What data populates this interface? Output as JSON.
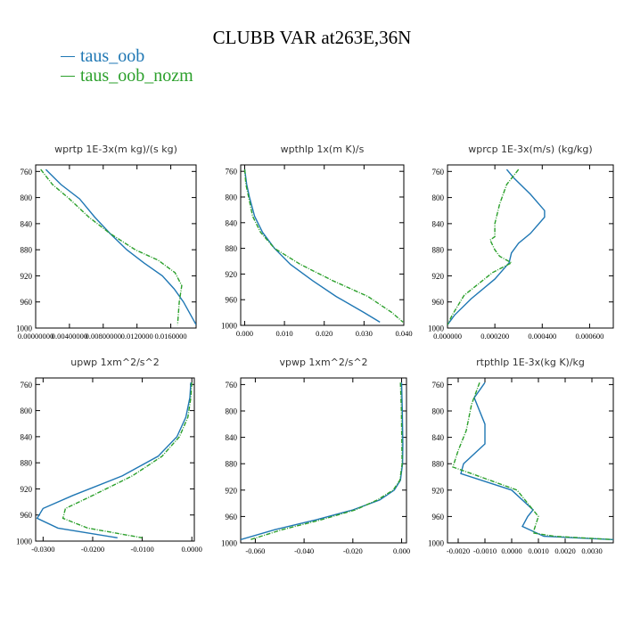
{
  "title": "CLUBB VAR at263E,36N",
  "legend": [
    {
      "label": "taus_oob",
      "color": "#1f77b4"
    },
    {
      "label": "taus_oob_nozm",
      "color": "#2ca02c"
    }
  ],
  "chart_data": [
    {
      "type": "line",
      "title": "wprtp  1E-3x(m kg)/(s kg)",
      "xlim": [
        0.0,
        0.019
      ],
      "xticks": [
        0.0,
        0.004,
        0.008,
        0.012,
        0.016
      ],
      "xtick_labels": [
        "0.00000000",
        "0.00400000",
        "0.00800000",
        "0.0120000",
        "0.0160000"
      ],
      "ylim": [
        1000,
        750
      ],
      "yticks": [
        760,
        800,
        840,
        880,
        920,
        960,
        1000
      ],
      "series": [
        {
          "name": "taus_oob",
          "x": [
            0.0012,
            0.003,
            0.0052,
            0.007,
            0.0088,
            0.0108,
            0.0128,
            0.015,
            0.0164,
            0.0175,
            0.019
          ],
          "y": [
            757,
            780,
            802,
            830,
            855,
            880,
            900,
            920,
            940,
            960,
            995
          ]
        },
        {
          "name": "taus_oob_nozm",
          "x": [
            0.0006,
            0.002,
            0.004,
            0.0063,
            0.0088,
            0.0118,
            0.0145,
            0.0165,
            0.0173,
            0.017,
            0.0168
          ],
          "y": [
            757,
            780,
            802,
            830,
            855,
            880,
            896,
            915,
            935,
            960,
            995
          ]
        }
      ]
    },
    {
      "type": "line",
      "title": "wpthlp  1x(m K)/s",
      "xlim": [
        -0.001,
        0.04
      ],
      "xticks": [
        0.0,
        0.01,
        0.02,
        0.03,
        0.04
      ],
      "xtick_labels": [
        "0.000",
        "0.010",
        "0.020",
        "0.030",
        "0.040"
      ],
      "ylim": [
        1000,
        750
      ],
      "yticks": [
        760,
        800,
        840,
        880,
        920,
        960,
        1000
      ],
      "series": [
        {
          "name": "taus_oob",
          "x": [
            0.0,
            0.0005,
            0.0012,
            0.0025,
            0.0045,
            0.0075,
            0.0115,
            0.017,
            0.023,
            0.03,
            0.034
          ],
          "y": [
            757,
            780,
            800,
            830,
            855,
            880,
            905,
            930,
            955,
            980,
            995
          ]
        },
        {
          "name": "taus_oob_nozm",
          "x": [
            0.0,
            0.0003,
            0.001,
            0.002,
            0.004,
            0.0075,
            0.014,
            0.022,
            0.031,
            0.037,
            0.0398
          ],
          "y": [
            757,
            780,
            800,
            830,
            855,
            880,
            905,
            930,
            955,
            980,
            995
          ]
        }
      ]
    },
    {
      "type": "line",
      "title": "wprcp  1E-3x(m/s) (kg/kg)",
      "xlim": [
        0.0,
        0.0007
      ],
      "xticks": [
        0.0,
        0.0002,
        0.0004,
        0.0006
      ],
      "xtick_labels": [
        "0.000000",
        "0.000200",
        "0.000400",
        "0.000600"
      ],
      "ylim": [
        1000,
        750
      ],
      "yticks": [
        760,
        800,
        840,
        880,
        920,
        960,
        1000
      ],
      "series": [
        {
          "name": "taus_oob",
          "x": [
            0.00025,
            0.00028,
            0.00035,
            0.00041,
            0.00041,
            0.00035,
            0.0003,
            0.00027,
            0.00026,
            0.0002,
            0.0001,
            3e-05,
            0.0
          ],
          "y": [
            757,
            770,
            795,
            820,
            830,
            855,
            870,
            885,
            900,
            925,
            955,
            980,
            995
          ]
        },
        {
          "name": "taus_oob_nozm",
          "x": [
            0.0003,
            0.00025,
            0.00022,
            0.0002,
            0.0002,
            0.00018,
            0.0002,
            0.00022,
            0.00027,
            0.00019,
            7e-05,
            2e-05,
            0.0
          ],
          "y": [
            757,
            780,
            810,
            840,
            860,
            865,
            880,
            890,
            900,
            915,
            950,
            980,
            995
          ]
        }
      ]
    },
    {
      "type": "line",
      "title": "upwp  1xm^2/s^2",
      "xlim": [
        -0.0315,
        0.0005
      ],
      "xticks": [
        -0.03,
        -0.02,
        -0.01,
        0.0
      ],
      "xtick_labels": [
        "-0.0300",
        "-0.0200",
        "-0.0100",
        "0.0000"
      ],
      "ylim": [
        1000,
        750
      ],
      "yticks": [
        760,
        800,
        840,
        880,
        920,
        960,
        1000
      ],
      "series": [
        {
          "name": "taus_oob",
          "x": [
            -0.0002,
            -0.0004,
            -0.0012,
            -0.003,
            -0.0068,
            -0.014,
            -0.024,
            -0.03,
            -0.0312,
            -0.027,
            -0.015
          ],
          "y": [
            757,
            780,
            810,
            840,
            870,
            900,
            930,
            950,
            965,
            980,
            995
          ]
        },
        {
          "name": "taus_oob_nozm",
          "x": [
            0.0,
            -0.0002,
            -0.0008,
            -0.0025,
            -0.006,
            -0.012,
            -0.02,
            -0.0255,
            -0.026,
            -0.021,
            -0.01
          ],
          "y": [
            757,
            780,
            810,
            840,
            870,
            900,
            930,
            950,
            965,
            980,
            995
          ]
        }
      ]
    },
    {
      "type": "line",
      "title": "vpwp  1xm^2/s^2",
      "xlim": [
        -0.066,
        0.002
      ],
      "xticks": [
        -0.06,
        -0.04,
        -0.02,
        0.0
      ],
      "xtick_labels": [
        "-0.060",
        "-0.040",
        "-0.020",
        "0.000"
      ],
      "ylim": [
        1000,
        750
      ],
      "yticks": [
        760,
        800,
        840,
        880,
        920,
        960,
        1000
      ],
      "series": [
        {
          "name": "taus_oob",
          "x": [
            0.0,
            0.0003,
            0.0005,
            0.0004,
            -0.0005,
            -0.003,
            -0.009,
            -0.02,
            -0.035,
            -0.052,
            -0.066
          ],
          "y": [
            757,
            800,
            850,
            880,
            905,
            920,
            935,
            950,
            965,
            980,
            995
          ]
        },
        {
          "name": "taus_oob_nozm",
          "x": [
            -0.0005,
            -0.0001,
            0.0001,
            0.0002,
            -0.0007,
            -0.0035,
            -0.01,
            -0.019,
            -0.033,
            -0.049,
            -0.062
          ],
          "y": [
            757,
            800,
            850,
            880,
            905,
            920,
            935,
            950,
            965,
            980,
            995
          ]
        }
      ]
    },
    {
      "type": "line",
      "title": "rtpthlp  1E-3x(kg K)/kg",
      "xlim": [
        -0.0024,
        0.0038
      ],
      "xticks": [
        -0.002,
        -0.001,
        0.0,
        0.001,
        0.002,
        0.003
      ],
      "xtick_labels": [
        "-0.0020",
        "-0.0010",
        "0.0000",
        "0.0010",
        "0.0020",
        "0.0030"
      ],
      "ylim": [
        1000,
        750
      ],
      "yticks": [
        760,
        800,
        840,
        880,
        920,
        960,
        1000
      ],
      "series": [
        {
          "name": "taus_oob",
          "x": [
            -0.001,
            -0.0014,
            -0.001,
            -0.001,
            -0.0018,
            -0.0019,
            0.0,
            0.0008,
            0.0006,
            0.0004,
            0.0012,
            0.0038
          ],
          "y": [
            757,
            780,
            820,
            850,
            880,
            895,
            920,
            950,
            960,
            975,
            990,
            995
          ]
        },
        {
          "name": "taus_oob_nozm",
          "x": [
            -0.0012,
            -0.0015,
            -0.0017,
            -0.002,
            -0.0022,
            -0.0015,
            0.0002,
            0.0008,
            0.001,
            0.0008,
            0.0016,
            0.0038
          ],
          "y": [
            757,
            790,
            830,
            860,
            885,
            895,
            920,
            950,
            960,
            985,
            990,
            995
          ]
        }
      ]
    }
  ]
}
